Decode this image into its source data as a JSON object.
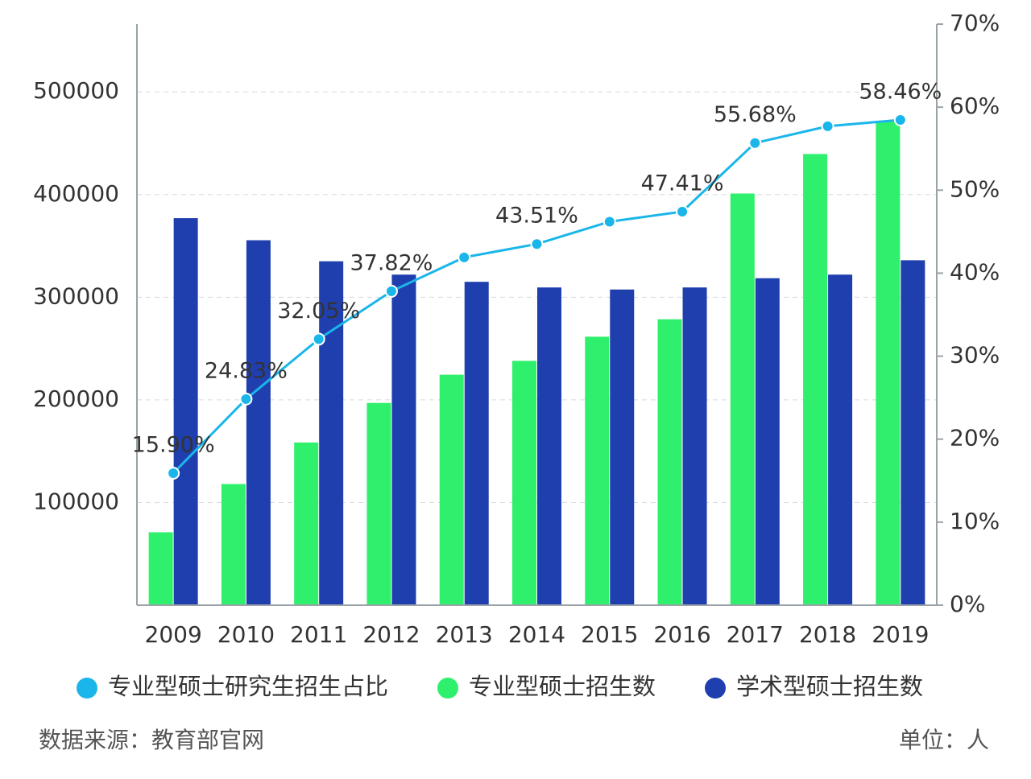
{
  "chart_data": {
    "type": "bar-line",
    "categories": [
      "2009",
      "2010",
      "2011",
      "2012",
      "2013",
      "2014",
      "2015",
      "2016",
      "2017",
      "2018",
      "2019"
    ],
    "series": [
      {
        "name": "专业型硕士研究生招生占比",
        "color": "#1ab6ea",
        "type": "line",
        "axis": "y2",
        "values": [
          15.9,
          24.83,
          32.05,
          37.82,
          41.9,
          43.51,
          46.2,
          47.41,
          55.68,
          57.7,
          58.46
        ],
        "value_labels": [
          "15.90%",
          "24.83%",
          "32.05%",
          "37.82%",
          null,
          "43.51%",
          null,
          "47.41%",
          "55.68%",
          null,
          "58.46%"
        ]
      },
      {
        "name": "专业型硕士招生数",
        "color": "#2ef06c",
        "type": "bar",
        "values": [
          71000,
          118000,
          158500,
          197000,
          224500,
          238000,
          261500,
          278500,
          401000,
          439500,
          471000
        ]
      },
      {
        "name": "学术型硕士招生数",
        "color": "#1f3fae",
        "type": "bar",
        "values": [
          377000,
          355500,
          335000,
          322000,
          315000,
          309500,
          307500,
          309500,
          318500,
          322000,
          336000
        ]
      }
    ],
    "ylim": [
      0,
      566000
    ],
    "yticks": [
      100000,
      200000,
      300000,
      400000,
      500000
    ],
    "y2lim": [
      0,
      70
    ],
    "y2ticks": [
      {
        "value": 0,
        "label": "0%"
      },
      {
        "value": 10,
        "label": "10%"
      },
      {
        "value": 20,
        "label": "20%"
      },
      {
        "value": 30,
        "label": "30%"
      },
      {
        "value": 40,
        "label": "40%"
      },
      {
        "value": 50,
        "label": "50%"
      },
      {
        "value": 60,
        "label": "60%"
      },
      {
        "value": 70,
        "label": "70%"
      }
    ],
    "grid": true,
    "legend": "bottom",
    "source": "数据来源：教育部官网",
    "unit_note": "单位：人"
  }
}
